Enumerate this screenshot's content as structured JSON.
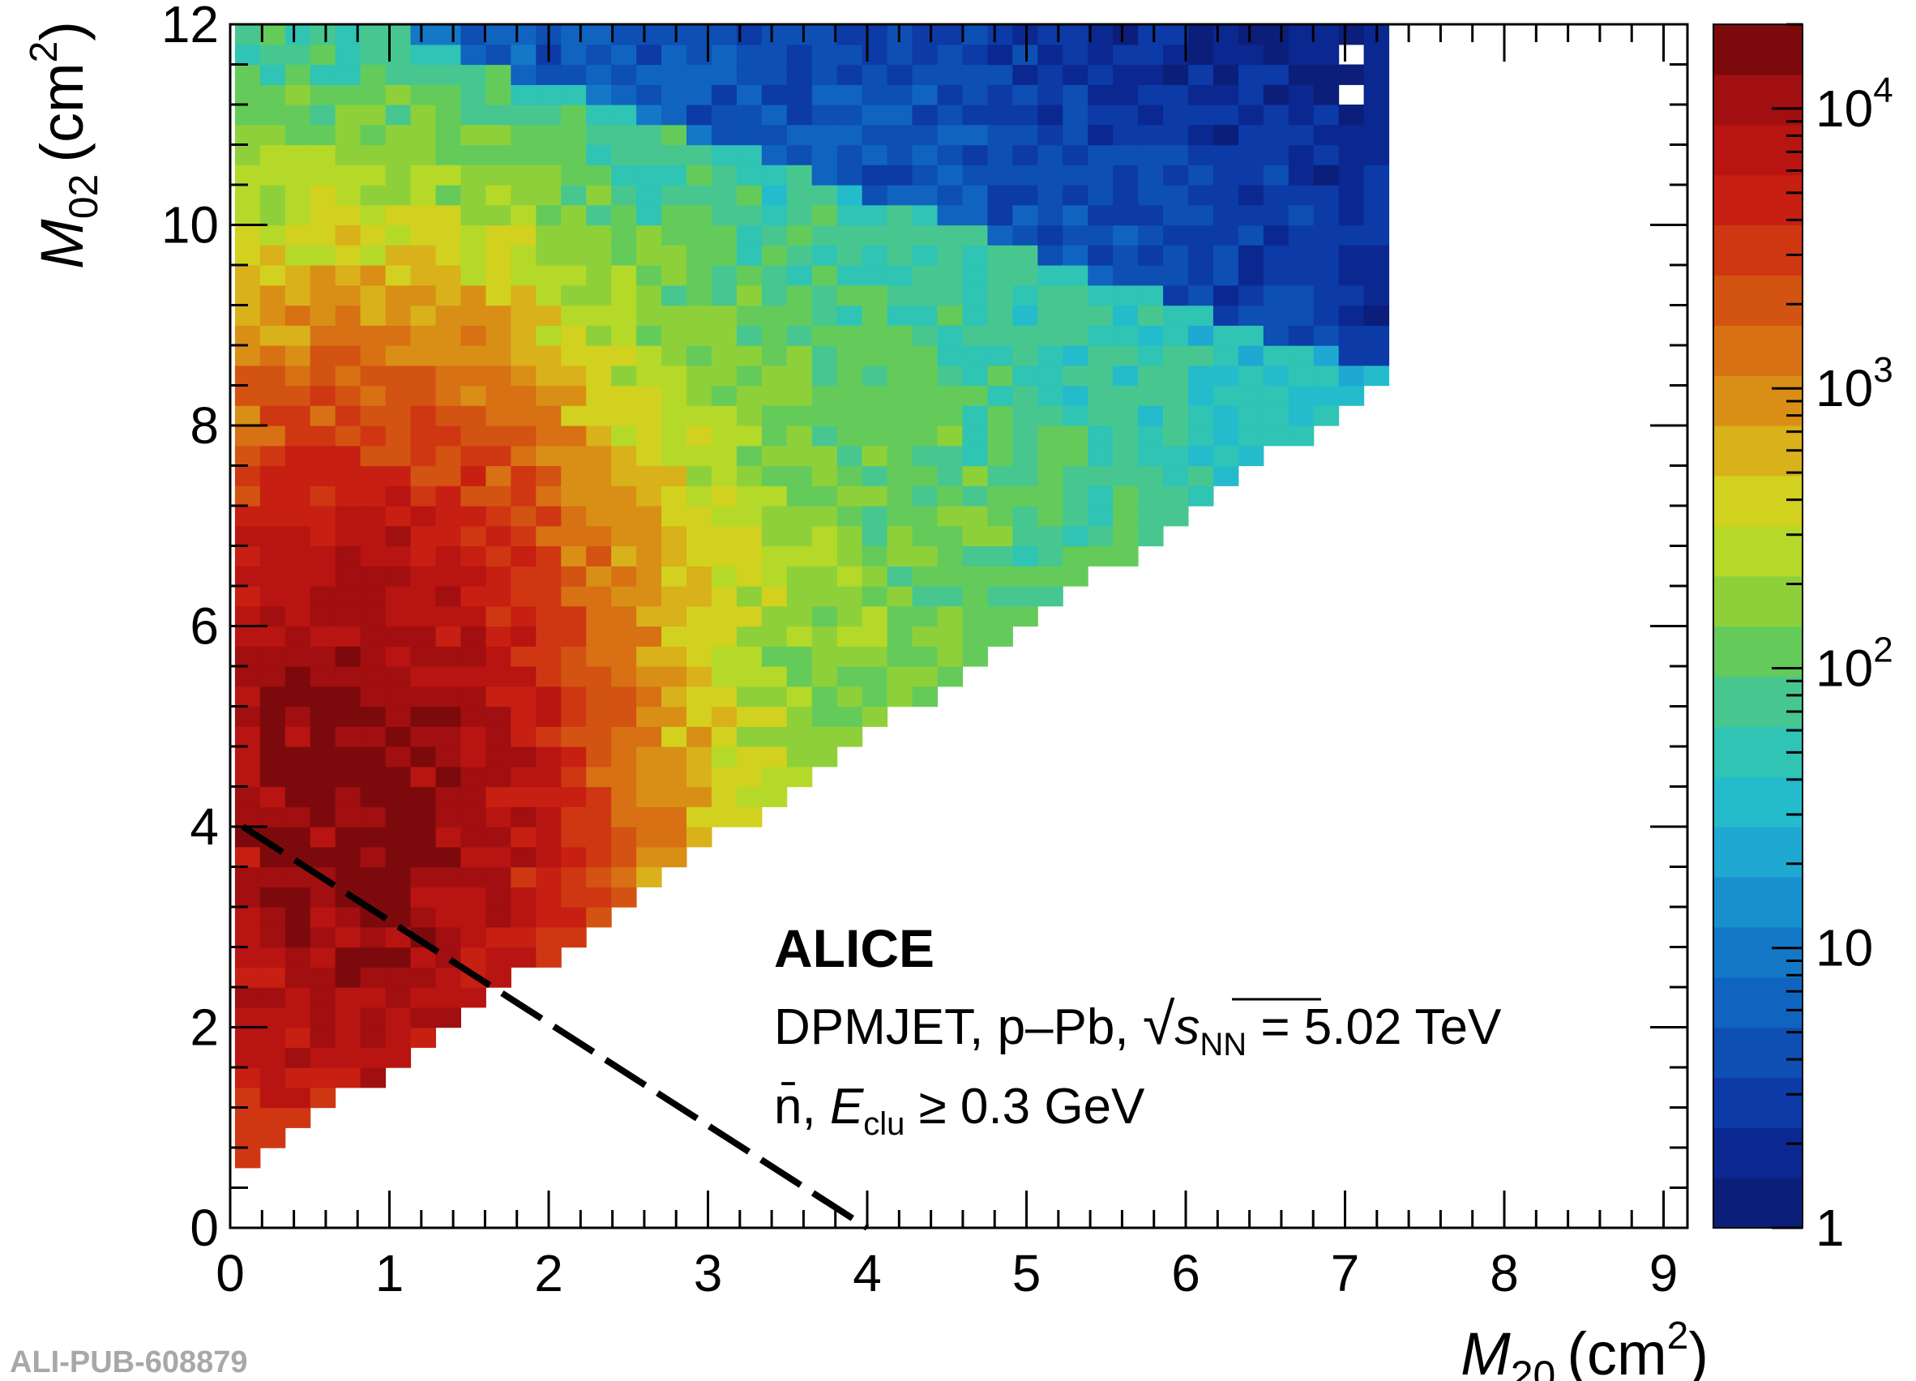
{
  "chart_data": {
    "type": "heatmap",
    "title": "",
    "xlabel_symbol": "M",
    "xlabel_sub": "20",
    "xlabel_unit_open": "(cm",
    "xlabel_unit_sup": "2",
    "xlabel_unit_close": ")",
    "ylabel_symbol": "M",
    "ylabel_sub": "02",
    "ylabel_unit_open": "(cm",
    "ylabel_unit_sup": "2",
    "ylabel_unit_close": ")",
    "xlim": [
      0,
      9.15
    ],
    "ylim": [
      0,
      12
    ],
    "x_ticks": [
      "0",
      "1",
      "2",
      "3",
      "4",
      "5",
      "6",
      "7",
      "8",
      "9"
    ],
    "y_ticks": [
      "0",
      "2",
      "4",
      "6",
      "8",
      "10",
      "12"
    ],
    "z_scale": "log",
    "z_range": [
      1,
      20000
    ],
    "z_ticks": [
      {
        "value": 1,
        "label": "1",
        "exp": ""
      },
      {
        "value": 10,
        "label": "10",
        "exp": ""
      },
      {
        "value": 100,
        "label": "10",
        "exp": "2"
      },
      {
        "value": 1000,
        "label": "10",
        "exp": "3"
      },
      {
        "value": 10000,
        "label": "10",
        "exp": "4"
      }
    ],
    "bin_width_x": 0.1575,
    "bin_width_y": 0.2,
    "density_model": "two-dimensional distribution peaked near M20 ≈ 0.55–1.1 cm², M02 ≈ 3–5 cm²; lower edge M02 ≈ 0.5 + 1.1·M20; sparse 1-count bins at large M20/M02",
    "cut_line": {
      "style": "dashed",
      "from": [
        0.08,
        4.0
      ],
      "to": [
        4.0,
        0.0
      ]
    },
    "annotation": {
      "experiment": "ALICE",
      "line2_prefix": "DPMJET, p–Pb, ",
      "line2_sqrt": "√",
      "line2_s": "s",
      "line2_sub": "NN",
      "line2_value": " = 5.02 TeV",
      "line3_particle": "n̄, ",
      "line3_e": "E",
      "line3_sub": "clu",
      "line3_cut": " ≥ 0.3 GeV"
    },
    "colormap": [
      "#0b1e7a",
      "#0b2891",
      "#0c3aa6",
      "#0d4fb3",
      "#1064c0",
      "#1478c6",
      "#1990ce",
      "#1ea8d2",
      "#24bccc",
      "#2fc4b4",
      "#47c78f",
      "#64cb5a",
      "#8ed03a",
      "#b5d929",
      "#d2d11f",
      "#d9b11a",
      "#d98f16",
      "#d77114",
      "#d35312",
      "#cf3712",
      "#c71f12",
      "#b81411",
      "#a10f10",
      "#7c0a0c"
    ]
  },
  "footer_id": "ALI-PUB-608879"
}
